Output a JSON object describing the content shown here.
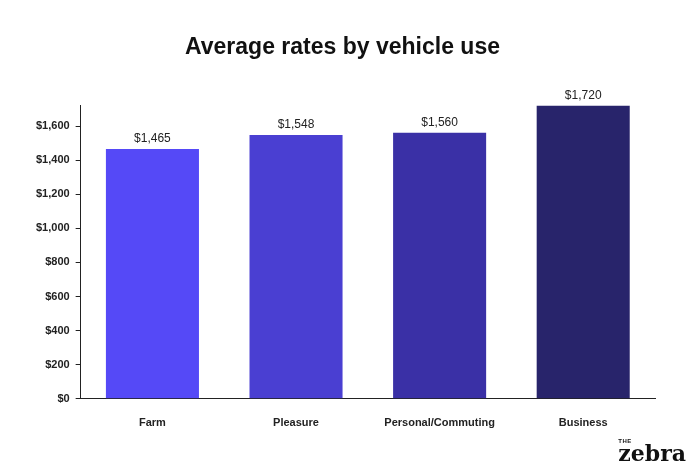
{
  "chart_data": {
    "type": "bar",
    "title": "Average rates by vehicle use",
    "categories": [
      "Farm",
      "Pleasure",
      "Personal/Commuting",
      "Business"
    ],
    "values": [
      1465,
      1548,
      1560,
      1720
    ],
    "value_labels": [
      "$1,465",
      "$1,548",
      "$1,560",
      "$1,720"
    ],
    "data_labels": true,
    "colors": [
      "#5549f7",
      "#4a3fd2",
      "#3a30a6",
      "#28246b"
    ],
    "ylim": [
      0,
      1720
    ],
    "yticks": [
      {
        "value": 0,
        "label": "$0"
      },
      {
        "value": 200,
        "label": "$200"
      },
      {
        "value": 400,
        "label": "$400"
      },
      {
        "value": 600,
        "label": "$600"
      },
      {
        "value": 800,
        "label": "$800"
      },
      {
        "value": 1000,
        "label": "$1,000"
      },
      {
        "value": 1200,
        "label": "$1,200"
      },
      {
        "value": 1400,
        "label": "$1,400"
      },
      {
        "value": 1600,
        "label": "$1,600"
      }
    ],
    "grid": false,
    "annotations": [
      "THE",
      "zebra"
    ]
  }
}
